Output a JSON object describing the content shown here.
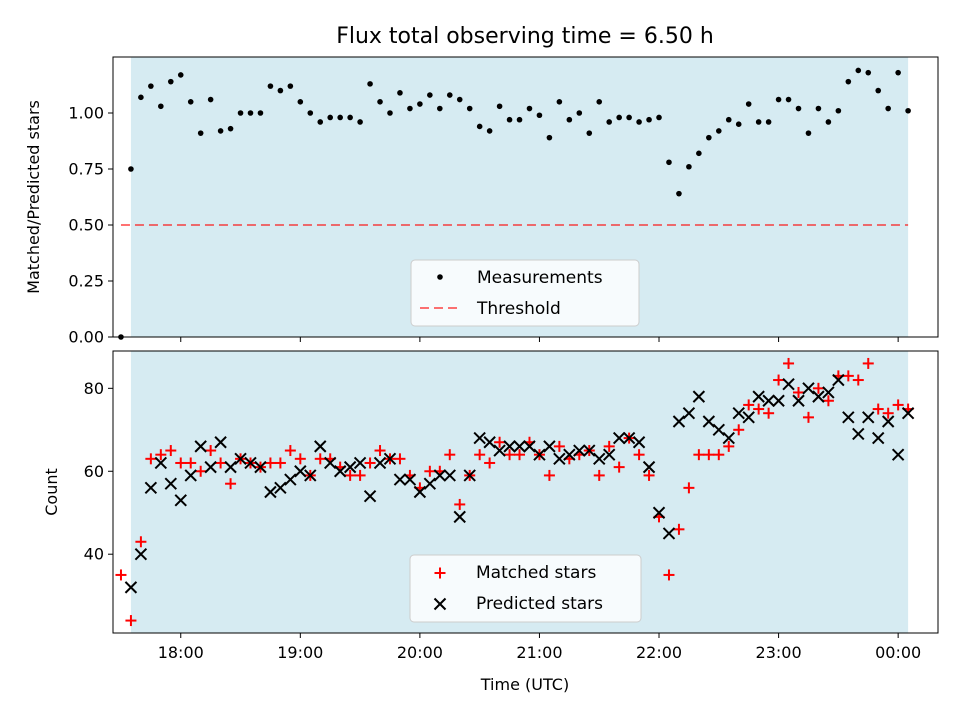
{
  "title": "Flux total observing time = 6.50 h",
  "colors": {
    "shade": "#add8e6",
    "measurement": "#000000",
    "threshold": "#ff0000",
    "matched": "#ff0000",
    "predicted": "#000000"
  },
  "chart_data": [
    {
      "type": "scatter",
      "ylabel": "Matched/Predicted stars",
      "xlabel": "",
      "ylim": [
        0,
        1.25
      ],
      "xlim": [
        "17:26",
        "00:20"
      ],
      "yticks": [
        "0.00",
        "0.25",
        "0.50",
        "0.75",
        "1.00"
      ],
      "observing_window": [
        "17:35",
        "00:05"
      ],
      "legend_position": "lower center",
      "threshold": {
        "name": "Threshold",
        "style": "dashed",
        "value": 0.5,
        "x_range": [
          "17:30",
          "00:05"
        ]
      },
      "series": [
        {
          "name": "Measurements",
          "x": [
            "17:30",
            "17:35",
            "17:40",
            "17:45",
            "17:50",
            "17:55",
            "18:00",
            "18:05",
            "18:10",
            "18:15",
            "18:20",
            "18:25",
            "18:30",
            "18:35",
            "18:40",
            "18:45",
            "18:50",
            "18:55",
            "19:00",
            "19:05",
            "19:10",
            "19:15",
            "19:20",
            "19:25",
            "19:30",
            "19:35",
            "19:40",
            "19:45",
            "19:50",
            "19:55",
            "20:00",
            "20:05",
            "20:10",
            "20:15",
            "20:20",
            "20:25",
            "20:30",
            "20:35",
            "20:40",
            "20:45",
            "20:50",
            "20:55",
            "21:00",
            "21:05",
            "21:10",
            "21:15",
            "21:20",
            "21:25",
            "21:30",
            "21:35",
            "21:40",
            "21:45",
            "21:50",
            "21:55",
            "22:00",
            "22:05",
            "22:10",
            "22:15",
            "22:20",
            "22:25",
            "22:30",
            "22:35",
            "22:40",
            "22:45",
            "22:50",
            "22:55",
            "23:00",
            "23:05",
            "23:10",
            "23:15",
            "23:20",
            "23:25",
            "23:30",
            "23:35",
            "23:40",
            "23:45",
            "23:50",
            "23:55",
            "00:00",
            "00:05"
          ],
          "y": [
            0.0,
            0.75,
            1.07,
            1.12,
            1.03,
            1.14,
            1.17,
            1.05,
            0.91,
            1.06,
            0.92,
            0.93,
            1.0,
            1.0,
            1.0,
            1.12,
            1.1,
            1.12,
            1.05,
            1.0,
            0.96,
            0.98,
            0.98,
            0.98,
            0.96,
            1.13,
            1.05,
            1.0,
            1.09,
            1.02,
            1.04,
            1.08,
            1.02,
            1.08,
            1.06,
            1.02,
            0.94,
            0.92,
            1.03,
            0.97,
            0.97,
            1.02,
            0.99,
            0.89,
            1.05,
            0.97,
            1.0,
            0.91,
            1.05,
            0.96,
            0.98,
            0.98,
            0.96,
            0.97,
            0.98,
            0.78,
            0.64,
            0.76,
            0.82,
            0.89,
            0.92,
            0.97,
            0.95,
            1.04,
            0.96,
            0.96,
            1.06,
            1.06,
            1.02,
            0.91,
            1.02,
            0.96,
            1.01,
            1.14,
            1.19,
            1.18,
            1.1,
            1.02,
            1.18,
            1.01
          ]
        }
      ]
    },
    {
      "type": "scatter",
      "ylabel": "Count",
      "xlabel": "Time (UTC)",
      "ylim": [
        21,
        89
      ],
      "xlim": [
        "17:26",
        "00:20"
      ],
      "yticks": [
        "40",
        "60",
        "80"
      ],
      "xticks": [
        "18:00",
        "19:00",
        "20:00",
        "21:00",
        "22:00",
        "23:00",
        "00:00"
      ],
      "observing_window": [
        "17:35",
        "00:05"
      ],
      "legend_position": "lower center",
      "series": [
        {
          "name": "Matched stars",
          "marker": "+",
          "x": [
            "17:30",
            "17:35",
            "17:40",
            "17:45",
            "17:50",
            "17:55",
            "18:00",
            "18:05",
            "18:10",
            "18:15",
            "18:20",
            "18:25",
            "18:30",
            "18:35",
            "18:40",
            "18:45",
            "18:50",
            "18:55",
            "19:00",
            "19:05",
            "19:10",
            "19:15",
            "19:20",
            "19:25",
            "19:30",
            "19:35",
            "19:40",
            "19:45",
            "19:50",
            "19:55",
            "20:00",
            "20:05",
            "20:10",
            "20:15",
            "20:20",
            "20:25",
            "20:30",
            "20:35",
            "20:40",
            "20:45",
            "20:50",
            "20:55",
            "21:00",
            "21:05",
            "21:10",
            "21:15",
            "21:20",
            "21:25",
            "21:30",
            "21:35",
            "21:40",
            "21:45",
            "21:50",
            "21:55",
            "22:00",
            "22:05",
            "22:10",
            "22:15",
            "22:20",
            "22:25",
            "22:30",
            "22:35",
            "22:40",
            "22:45",
            "22:50",
            "22:55",
            "23:00",
            "23:05",
            "23:10",
            "23:15",
            "23:20",
            "23:25",
            "23:30",
            "23:35",
            "23:40",
            "23:45",
            "23:50",
            "23:55",
            "00:00",
            "00:05"
          ],
          "y": [
            35,
            24,
            43,
            63,
            64,
            65,
            62,
            62,
            60,
            65,
            62,
            57,
            63,
            62,
            61,
            62,
            62,
            65,
            63,
            59,
            63,
            63,
            61,
            59,
            59,
            62,
            65,
            63,
            63,
            59,
            56,
            60,
            60,
            64,
            52,
            59,
            64,
            62,
            67,
            64,
            64,
            67,
            64,
            59,
            66,
            63,
            64,
            65,
            59,
            66,
            61,
            68,
            64,
            59,
            49,
            35,
            46,
            56,
            64,
            64,
            64,
            66,
            70,
            76,
            75,
            74,
            82,
            86,
            79,
            73,
            80,
            77,
            83,
            83,
            82,
            86,
            75,
            74,
            76,
            75
          ]
        },
        {
          "name": "Predicted stars",
          "marker": "x",
          "x": [
            "17:35",
            "17:40",
            "17:45",
            "17:50",
            "17:55",
            "18:00",
            "18:05",
            "18:10",
            "18:15",
            "18:20",
            "18:25",
            "18:30",
            "18:35",
            "18:40",
            "18:45",
            "18:50",
            "18:55",
            "19:00",
            "19:05",
            "19:10",
            "19:15",
            "19:20",
            "19:25",
            "19:30",
            "19:35",
            "19:40",
            "19:45",
            "19:50",
            "19:55",
            "20:00",
            "20:05",
            "20:10",
            "20:15",
            "20:20",
            "20:25",
            "20:30",
            "20:35",
            "20:40",
            "20:45",
            "20:50",
            "20:55",
            "21:00",
            "21:05",
            "21:10",
            "21:15",
            "21:20",
            "21:25",
            "21:30",
            "21:35",
            "21:40",
            "21:45",
            "21:50",
            "21:55",
            "22:00",
            "22:05",
            "22:10",
            "22:15",
            "22:20",
            "22:25",
            "22:30",
            "22:35",
            "22:40",
            "22:45",
            "22:50",
            "22:55",
            "23:00",
            "23:05",
            "23:10",
            "23:15",
            "23:20",
            "23:25",
            "23:30",
            "23:35",
            "23:40",
            "23:45",
            "23:50",
            "23:55",
            "00:00",
            "00:05"
          ],
          "y": [
            32,
            40,
            56,
            62,
            57,
            53,
            59,
            66,
            61,
            67,
            61,
            63,
            62,
            61,
            55,
            56,
            58,
            60,
            59,
            66,
            62,
            60,
            61,
            62,
            54,
            62,
            63,
            58,
            58,
            55,
            57,
            59,
            59,
            49,
            59,
            68,
            67,
            65,
            66,
            66,
            66,
            64,
            66,
            63,
            64,
            65,
            65,
            63,
            64,
            68,
            68,
            67,
            61,
            50,
            45,
            72,
            74,
            78,
            72,
            70,
            68,
            74,
            73,
            78,
            77,
            77,
            81,
            77,
            80,
            78,
            79,
            82,
            73,
            69,
            73,
            68,
            72,
            64,
            74
          ]
        }
      ]
    }
  ]
}
